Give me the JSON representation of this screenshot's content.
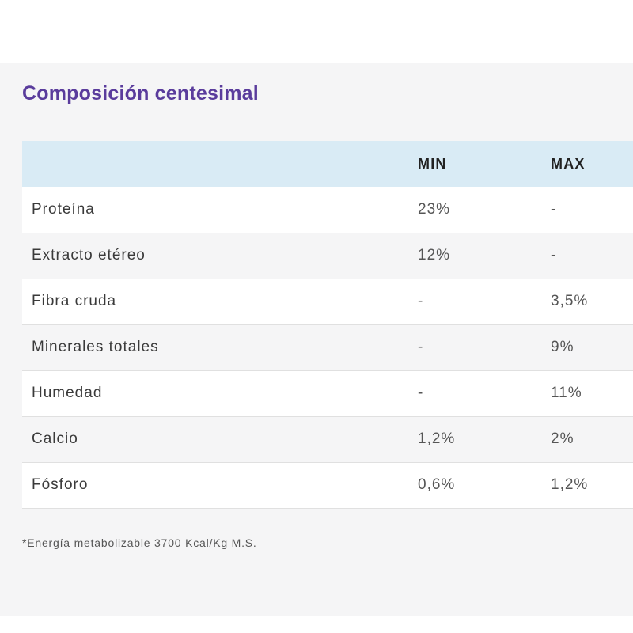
{
  "section": {
    "title": "Composición centesimal"
  },
  "table": {
    "headers": {
      "name": "",
      "min": "MIN",
      "max": "MAX"
    },
    "rows": [
      {
        "name": "Proteína",
        "min": "23%",
        "max": "-"
      },
      {
        "name": "Extracto etéreo",
        "min": "12%",
        "max": "-"
      },
      {
        "name": "Fibra cruda",
        "min": "-",
        "max": "3,5%"
      },
      {
        "name": "Minerales totales",
        "min": "-",
        "max": "9%"
      },
      {
        "name": "Humedad",
        "min": "-",
        "max": "11%"
      },
      {
        "name": "Calcio",
        "min": "1,2%",
        "max": "2%"
      },
      {
        "name": "Fósforo",
        "min": "0,6%",
        "max": "1,2%"
      }
    ]
  },
  "footnote": "*Energía metabolizable 3700 Kcal/Kg M.S.",
  "colors": {
    "title": "#5a3c9c",
    "header_bg": "#d9ebf5",
    "panel_bg": "#f5f5f6"
  }
}
